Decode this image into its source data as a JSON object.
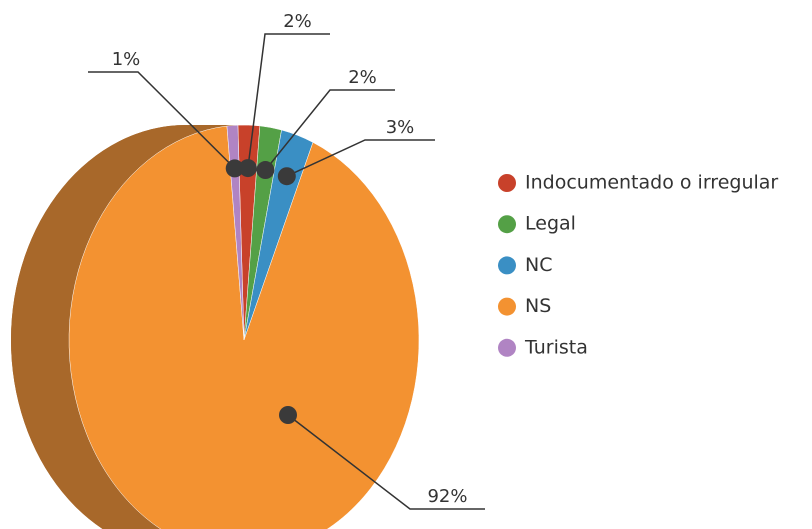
{
  "chart_data": {
    "type": "pie",
    "categories": [
      "Indocumentado o irregular",
      "Legal",
      "NC",
      "NS",
      "Turista"
    ],
    "values": [
      2,
      2,
      3,
      92,
      1
    ],
    "value_labels": [
      "2%",
      "2%",
      "3%",
      "92%",
      "1%"
    ],
    "colors": [
      "#c8412a",
      "#54a046",
      "#3a8fc4",
      "#f39231",
      "#b084c3"
    ],
    "legend": "right"
  }
}
